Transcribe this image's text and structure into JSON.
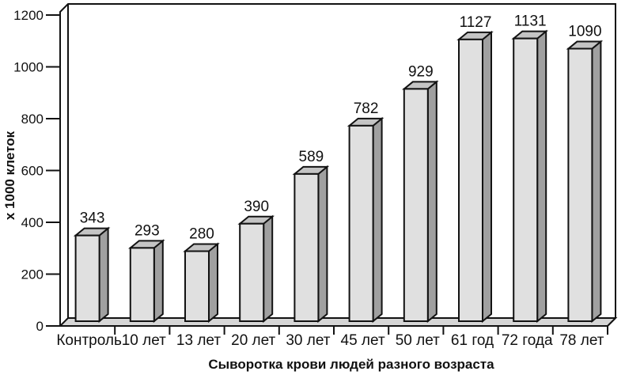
{
  "chart_data": {
    "type": "bar",
    "style": "3d-column",
    "title": "",
    "xlabel": "Сыворотка крови людей разного возраста",
    "ylabel": "х 1000 клеток",
    "categories": [
      "Контроль",
      "10 лет",
      "13 лет",
      "20 лет",
      "30 лет",
      "45 лет",
      "50 лет",
      "61 год",
      "72 года",
      "78 лет"
    ],
    "values": [
      343,
      293,
      280,
      390,
      589,
      782,
      929,
      1127,
      1131,
      1090
    ],
    "data_labels": [
      343,
      293,
      280,
      390,
      589,
      782,
      929,
      1127,
      1131,
      1090
    ],
    "ylim": [
      0,
      1200
    ],
    "yticks": [
      0,
      200,
      400,
      600,
      800,
      1000,
      1200
    ],
    "grid": false,
    "legend": "none",
    "colors": {
      "bar_front": "#e0e0e0",
      "bar_top": "#c4c4c4",
      "bar_side": "#a0a0a0",
      "floor": "#d6d6d6",
      "outline": "#121212",
      "background": "#ffffff",
      "text": "#111111"
    }
  }
}
